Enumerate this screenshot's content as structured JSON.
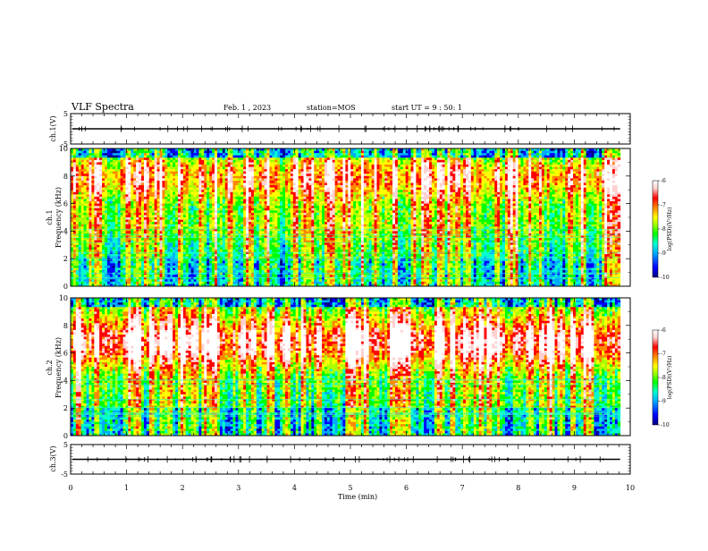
{
  "header": {
    "title": "VLF Spectra",
    "date": "Feb. 1 , 2023",
    "station": "station=MOS",
    "start": "start UT =  9 : 50: 1"
  },
  "chart_data": {
    "type": "heatmap",
    "xlabel": "Time (min)",
    "xlim": [
      0,
      10
    ],
    "xticks": [
      "0",
      "1",
      "2",
      "3",
      "4",
      "5",
      "6",
      "7",
      "8",
      "9",
      "10"
    ],
    "data_end_min": 9.82,
    "panels": [
      {
        "id": "ch1-waveform",
        "type": "line",
        "ylabel": "ch.1(V)",
        "ylim": [
          -5,
          5
        ],
        "yticks": [
          "5",
          "-5"
        ]
      },
      {
        "id": "ch1-spectrogram",
        "type": "heatmap",
        "ylabel": "ch.1 Frequency (kHz)",
        "ylim": [
          0,
          10
        ],
        "yticks": [
          "0",
          "2",
          "4",
          "6",
          "8",
          "10"
        ],
        "colorbar": {
          "label": "log(PSD)(V²/Hz)",
          "range": [
            -10,
            -6
          ],
          "ticks": [
            "-6",
            "-7",
            "-8",
            "-9",
            "-10"
          ]
        }
      },
      {
        "id": "ch2-spectrogram",
        "type": "heatmap",
        "ylabel": "ch.2 Frequency (kHz)",
        "ylim": [
          0,
          10
        ],
        "yticks": [
          "0",
          "2",
          "4",
          "6",
          "8",
          "10"
        ],
        "colorbar": {
          "label": "log(PSD)(V²/Hz)",
          "range": [
            -10,
            -6
          ],
          "ticks": [
            "-6",
            "-7",
            "-8",
            "-9",
            "-10"
          ]
        }
      },
      {
        "id": "ch3-waveform",
        "type": "line",
        "ylabel": "ch.3(V)",
        "ylim": [
          -5,
          5
        ],
        "yticks": [
          "5",
          "-5"
        ]
      }
    ],
    "colormap": [
      "#000080",
      "#0000ff",
      "#00aaff",
      "#00ffcc",
      "#00ff00",
      "#aaff00",
      "#ffff00",
      "#ff8800",
      "#ff0000",
      "#ffd0d0",
      "#ffffff"
    ]
  }
}
